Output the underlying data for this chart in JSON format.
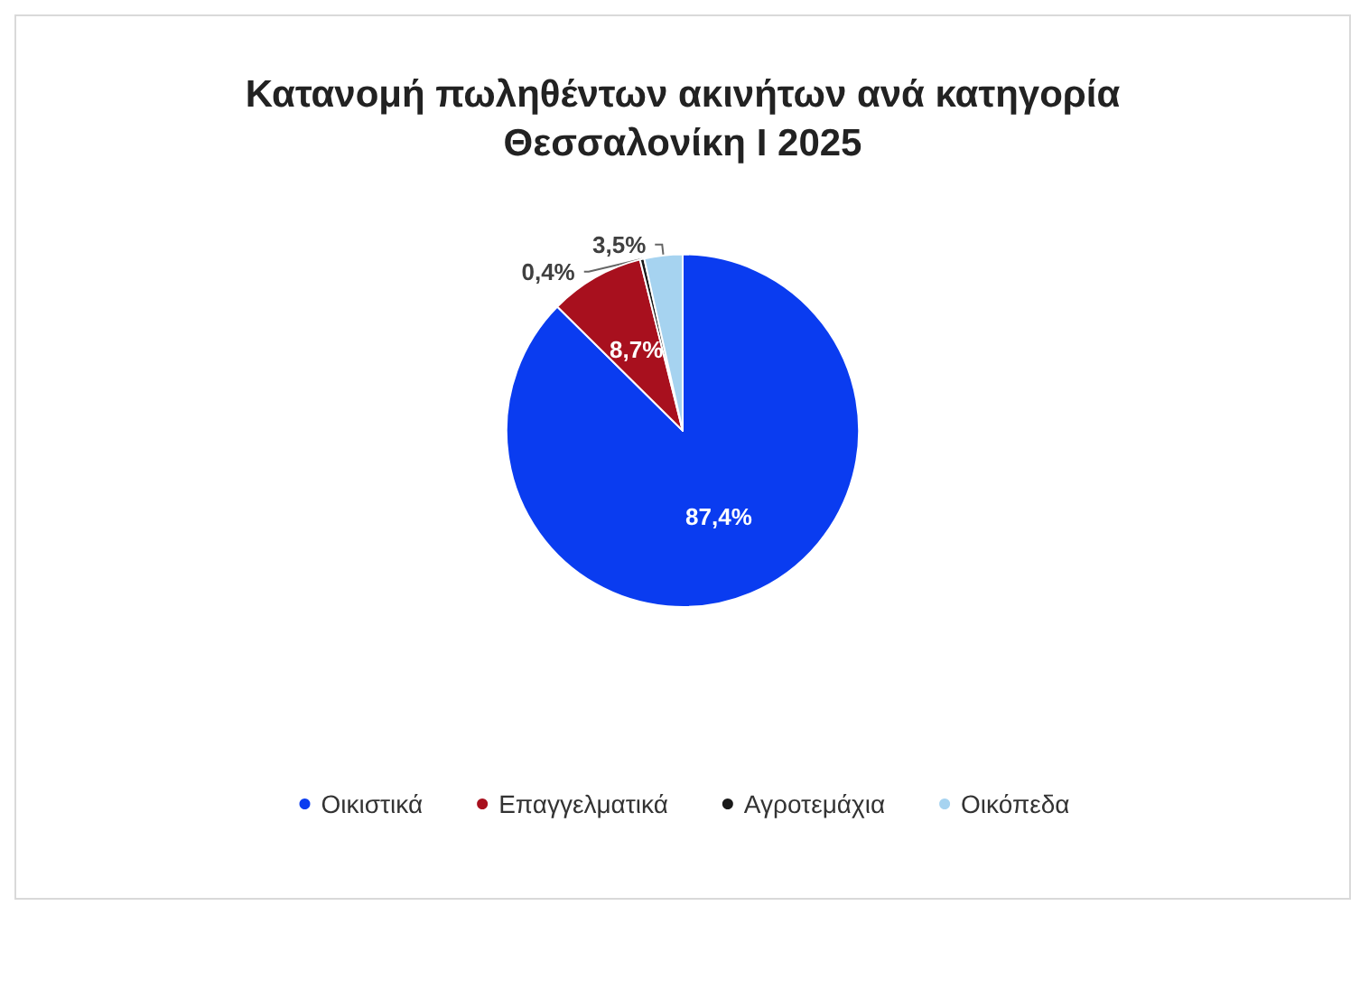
{
  "chart_data": {
    "type": "pie",
    "title": "Κατανομή πωληθέντων ακινήτων ανά κατηγορία",
    "subtitle": "Θεσσαλονίκη Ι 2025",
    "categories": [
      "Οικιστικά",
      "Επαγγελματικά",
      "Αγροτεμάχια",
      "Οικόπεδα"
    ],
    "values": [
      87.4,
      8.7,
      0.4,
      3.5
    ],
    "value_labels": [
      "87,4%",
      "8,7%",
      "0,4%",
      "3,5%"
    ],
    "colors": [
      "#0a3cf0",
      "#a8101e",
      "#1a1a1a",
      "#a6d3f0"
    ],
    "legend": "bottom"
  }
}
